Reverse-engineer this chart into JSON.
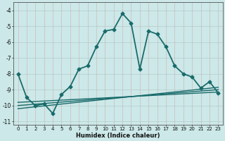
{
  "xlabel": "Humidex (Indice chaleur)",
  "ylabel": "",
  "background_color": "#cce8e8",
  "grid_color": "#b0cccc",
  "line_color": "#1a6b6b",
  "xlim": [
    -0.5,
    23.5
  ],
  "ylim": [
    -11.2,
    -3.5
  ],
  "yticks": [
    -11,
    -10,
    -9,
    -8,
    -7,
    -6,
    -5,
    -4
  ],
  "xticks": [
    0,
    1,
    2,
    3,
    4,
    5,
    6,
    7,
    8,
    9,
    10,
    11,
    12,
    13,
    14,
    15,
    16,
    17,
    18,
    19,
    20,
    21,
    22,
    23
  ],
  "series": [
    {
      "x": [
        0,
        1,
        2,
        3,
        4,
        5,
        6,
        7,
        8,
        9,
        10,
        11,
        12,
        13,
        14,
        15,
        16,
        17,
        18,
        19,
        20,
        21,
        22,
        23
      ],
      "y": [
        -8.0,
        -9.5,
        -10.0,
        -9.9,
        -10.5,
        -9.3,
        -8.8,
        -7.7,
        -7.5,
        -6.3,
        -5.3,
        -5.2,
        -4.2,
        -4.8,
        -7.7,
        -5.3,
        -5.5,
        -6.3,
        -7.5,
        -8.0,
        -8.2,
        -8.9,
        -8.5,
        -9.2
      ],
      "marker": "D",
      "linewidth": 1.3,
      "markersize": 2.5
    },
    {
      "x": [
        0,
        23
      ],
      "y": [
        -9.8,
        -9.15
      ],
      "marker": null,
      "linewidth": 1.0,
      "markersize": 0
    },
    {
      "x": [
        0,
        23
      ],
      "y": [
        -10.0,
        -9.0
      ],
      "marker": null,
      "linewidth": 1.0,
      "markersize": 0
    },
    {
      "x": [
        0,
        23
      ],
      "y": [
        -10.2,
        -8.85
      ],
      "marker": null,
      "linewidth": 1.0,
      "markersize": 0
    }
  ]
}
